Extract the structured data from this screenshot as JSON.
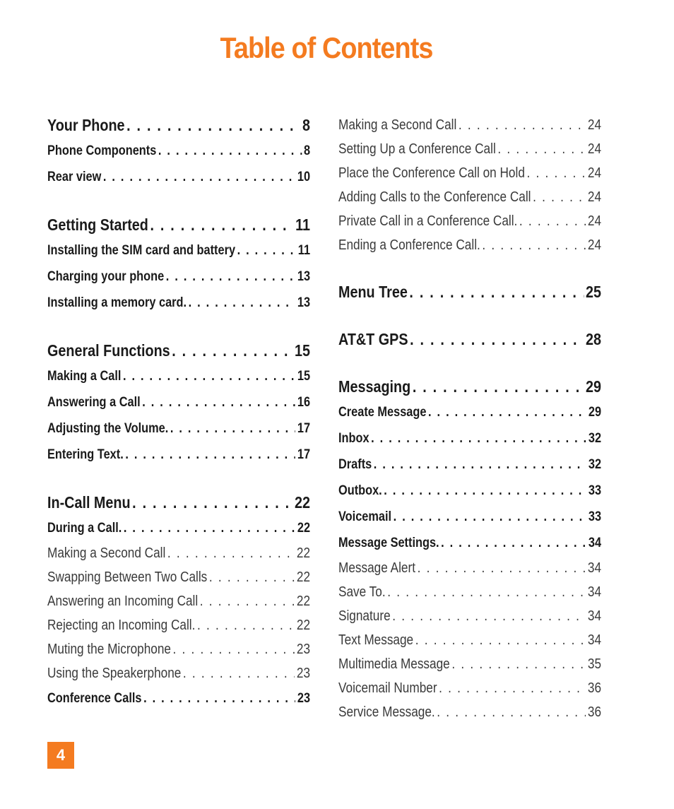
{
  "title": "Table of Contents",
  "page_number": "4",
  "left": [
    {
      "label": "Your Phone",
      "page": "8",
      "level": 1
    },
    {
      "label": "Phone Components",
      "page": "8",
      "level": 2
    },
    {
      "label": "Rear view",
      "page": "10",
      "level": 2
    },
    {
      "label": "Getting Started",
      "page": "11",
      "level": 1
    },
    {
      "label": "Installing the SIM card and battery",
      "page": "11",
      "level": 2
    },
    {
      "label": "Charging your phone",
      "page": "13",
      "level": 2
    },
    {
      "label": "Installing a memory card.",
      "page": "13",
      "level": 2
    },
    {
      "label": "General Functions",
      "page": "15",
      "level": 1
    },
    {
      "label": "Making a Call",
      "page": "15",
      "level": 2
    },
    {
      "label": "Answering a Call",
      "page": "16",
      "level": 2
    },
    {
      "label": "Adjusting the Volume.",
      "page": "17",
      "level": 2
    },
    {
      "label": "Entering Text.",
      "page": "17",
      "level": 2
    },
    {
      "label": "In-Call Menu",
      "page": "22",
      "level": 1
    },
    {
      "label": "During a Call.",
      "page": "22",
      "level": 2
    },
    {
      "label": "Making a Second Call",
      "page": "22",
      "level": 3
    },
    {
      "label": "Swapping Between Two Calls",
      "page": "22",
      "level": 3
    },
    {
      "label": "Answering an Incoming Call",
      "page": "22",
      "level": 3
    },
    {
      "label": "Rejecting an Incoming Call.",
      "page": "22",
      "level": 3
    },
    {
      "label": "Muting the Microphone",
      "page": "23",
      "level": 3
    },
    {
      "label": "Using the Speakerphone",
      "page": "23",
      "level": 3
    },
    {
      "label": "Conference Calls",
      "page": "23",
      "level": 2
    }
  ],
  "right": [
    {
      "label": "Making a Second Call",
      "page": "24",
      "level": 3
    },
    {
      "label": "Setting Up a Conference Call",
      "page": "24",
      "level": 3
    },
    {
      "label": "Place the Conference Call on Hold",
      "page": "24",
      "level": 3
    },
    {
      "label": "Adding Calls to the Conference Call",
      "page": "24",
      "level": 3
    },
    {
      "label": "Private Call in a Conference Call.",
      "page": "24",
      "level": 3
    },
    {
      "label": "Ending a Conference Call.",
      "page": "24",
      "level": 3
    },
    {
      "label": "Menu Tree",
      "page": "25",
      "level": 1
    },
    {
      "label": "AT&T GPS",
      "page": "28",
      "level": 1
    },
    {
      "label": "Messaging",
      "page": "29",
      "level": 1
    },
    {
      "label": "Create Message",
      "page": "29",
      "level": 2
    },
    {
      "label": "Inbox",
      "page": "32",
      "level": 2
    },
    {
      "label": "Drafts",
      "page": "32",
      "level": 2
    },
    {
      "label": "Outbox.",
      "page": "33",
      "level": 2
    },
    {
      "label": "Voicemail",
      "page": "33",
      "level": 2
    },
    {
      "label": "Message Settings.",
      "page": "34",
      "level": 2
    },
    {
      "label": "Message Alert",
      "page": "34",
      "level": 3
    },
    {
      "label": "Save To.",
      "page": "34",
      "level": 3
    },
    {
      "label": "Signature",
      "page": "34",
      "level": 3
    },
    {
      "label": "Text Message",
      "page": "34",
      "level": 3
    },
    {
      "label": "Multimedia Message",
      "page": "35",
      "level": 3
    },
    {
      "label": "Voicemail Number",
      "page": "36",
      "level": 3
    },
    {
      "label": "Service Message.",
      "page": "36",
      "level": 3
    }
  ]
}
